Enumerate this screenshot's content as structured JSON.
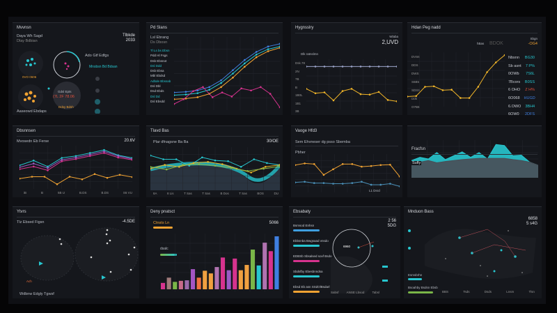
{
  "colors": {
    "teal": "#27c6cf",
    "blue": "#3f7fe0",
    "orange": "#f0a232",
    "yellow": "#e7b728",
    "pink": "#d6338e",
    "purple": "#9a5bc4",
    "gray": "#4a4d55",
    "green": "#7ab648",
    "red": "#e0503c"
  },
  "p1": {
    "title": "Mvvnsn",
    "sub1": "Daya Wh Sagd",
    "sub2": "Dlay Bdbian",
    "right1": "Tlbkde",
    "right2": "2033",
    "list_title": "Ado Gtf Edfgs",
    "list_hl": "Mnsbsn Bd Bdsan",
    "gauge_label": "Gdsl Epts",
    "gauge_value": "(7L 2F 78.06",
    "gauge_value2": "Ddsy Bdsh",
    "bubble_label": "0VO 0606",
    "footer": "Aaseowd Ebdaps"
  },
  "p2": {
    "title": "Pd Slans",
    "sub": "Lsl Ebrang",
    "sub2": "Ds Dbosn",
    "labels": [
      "Tl Ls bs Dbsn",
      "Pdd Hl Fsgs",
      "Dsb Ebsnot",
      "Dsl Ddd",
      "Dsb Ebsa",
      "Mbl Ebdsd",
      "Adbde Bbssab",
      "Dsl Dbl",
      "Dsd Ebds",
      "Dsl Dd",
      "Dsl Ebsdd"
    ]
  },
  "p3": {
    "title": "Hygnsslry",
    "right1": "Wlaba",
    "right2": "2,UVD",
    "axis_label": "Dlk ratnslmn",
    "yticks": [
      "Dsk.78",
      "2N",
      "7B",
      "B",
      "1B0L",
      "1B1",
      "3B"
    ]
  },
  "p4": {
    "title": "Hdan Peg nadd",
    "right1": "Sbgn",
    "right2": "-OG4",
    "head": "hBas",
    "head2": "BDOK",
    "yticks": [
      "DVS6",
      "DDS",
      "DWS",
      "S6B5",
      "SDSS",
      "Dds",
      "O7B6"
    ],
    "stats": [
      {
        "k": "Nbsnn",
        "v": "BG30",
        "c": "#27c6cf"
      },
      {
        "k": "Sb asnt",
        "v": "7 P%",
        "c": "#27c6cf"
      },
      {
        "k": "0OWb",
        "v": "7S6L",
        "c": "#27c6cf"
      },
      {
        "k": "7Bcors",
        "v": "B0SS",
        "c": "#27c6cf"
      },
      {
        "k": "6 OHO",
        "v": "Z H%",
        "c": "#e0503c"
      },
      {
        "k": "6O068",
        "v": "HUGD",
        "c": "#3f7fe0"
      },
      {
        "k": "6.OWO",
        "v": "3BH4",
        "c": "#27c6cf"
      },
      {
        "k": "6OW0",
        "v": "2DFS",
        "c": "#3f7fe0"
      }
    ]
  },
  "p5": {
    "title": "Dbsnnsen",
    "sub": "Mvosedn Eb Ferse",
    "right": "20.6V",
    "xticks": [
      "iB",
      "B",
      "5B U",
      "B.DS",
      "B.DS",
      "S6 VU"
    ]
  },
  "p6": {
    "title": "Tlavd Bas",
    "sub": "Plar dfnagsne Ba Ba",
    "right": "30/OE",
    "xticks": [
      "8A",
      "8 Lis",
      "T Sas",
      "T Sas",
      "B Dos",
      "T Sas",
      "BOS",
      "DU"
    ]
  },
  "p7": {
    "title": "Vaoge Hfd3",
    "sub": "Sem Ehvneser dg psso Sbemba",
    "sub2": "Pbher",
    "note": "L1 Dsrd"
  },
  "p8": {
    "title": "Fracfsn",
    "sub": "Sufly"
  },
  "p9": {
    "title": "Ytvrs",
    "sub": "Tlz Ebsed Figsn",
    "right": "-4.5DE",
    "footer": "Wdbnw Edgly Tgwsf",
    "legend": "Ach"
  },
  "p10": {
    "title": "Deny pnatsct",
    "right": "5066",
    "legend1": "Ctnsts Ln",
    "legend2": "dsalc"
  },
  "p11": {
    "title": "Ebsabaty",
    "right1": "2 56",
    "right2": "5DG",
    "circle_label": "6960",
    "items": [
      {
        "label": "Bsmsod Enhsn",
        "color": "#3f9fe0"
      },
      {
        "label": "Ebbsnba Bwgsaad vnsdo",
        "color": "#27c6cf"
      },
      {
        "label": "EDBSb Sbsalsed sovf Bsdo",
        "color": "#d6338e"
      },
      {
        "label": "Sbdsfby Ebesbnndsa",
        "color": "#27c6cf"
      },
      {
        "label": "Ebsd Eb asn SSdOlBsdarl",
        "color": "#f0a232"
      }
    ],
    "xticks": [
      "Sabsf",
      "ANSE Lbsod",
      "Tabsl"
    ]
  },
  "p12": {
    "title": "Mnduon Bass",
    "right1": "6858",
    "right2": "5 s4G",
    "legend1": "Esmsbrhn",
    "legend2": "Bsoahby Bsdsn Ebsb",
    "xticks": [
      "BBS",
      "Tsds",
      "Dsds",
      "Lnsm",
      "Tlsn"
    ]
  },
  "chart_data": [
    {
      "id": "c2",
      "type": "line",
      "ymax": 100,
      "series": [
        {
          "color": "#3f7fe0",
          "values": [
            22,
            23,
            25,
            30,
            40,
            55,
            70,
            82,
            90,
            94
          ]
        },
        {
          "color": "#27c6cf",
          "values": [
            18,
            19,
            21,
            26,
            36,
            50,
            65,
            78,
            86,
            90
          ]
        },
        {
          "color": "#f0a232",
          "values": [
            12,
            13,
            15,
            20,
            30,
            44,
            60,
            74,
            83,
            88
          ]
        },
        {
          "color": "#d6338e",
          "values": [
            5,
            12,
            24,
            30,
            15,
            22,
            16,
            28,
            25,
            30,
            20,
            0
          ]
        }
      ]
    },
    {
      "id": "c3",
      "type": "line",
      "ymax": 100,
      "series": [
        {
          "color": "#9aa3c8",
          "values": [
            90,
            90,
            90,
            90,
            90,
            90,
            90,
            90,
            90,
            90,
            90
          ]
        },
        {
          "color": "#f0b428",
          "values": [
            40,
            30,
            32,
            14,
            35,
            40,
            28,
            27,
            33,
            15,
            12
          ]
        }
      ]
    },
    {
      "id": "c4",
      "type": "line",
      "ymax": 100,
      "series": [
        {
          "color": "#f0b428",
          "values": [
            15,
            16,
            35,
            36,
            28,
            29,
            12,
            12,
            35,
            65,
            85,
            100
          ]
        }
      ]
    },
    {
      "id": "c5",
      "type": "line",
      "ymax": 100,
      "series": [
        {
          "color": "#27c6cf",
          "values": [
            55,
            68,
            52,
            75,
            80,
            88,
            96,
            82,
            75
          ]
        },
        {
          "color": "#9a5bc4",
          "values": [
            50,
            60,
            48,
            70,
            76,
            84,
            92,
            80,
            72
          ]
        },
        {
          "color": "#d6338e",
          "values": [
            45,
            52,
            42,
            66,
            72,
            80,
            88,
            76,
            70
          ]
        },
        {
          "color": "#f0a232",
          "values": [
            20,
            25,
            25,
            5,
            25,
            18,
            32,
            22,
            30,
            24
          ]
        }
      ]
    },
    {
      "id": "c6",
      "type": "line",
      "ymax": 100,
      "series": [
        {
          "color": "#27c6cf",
          "values": [
            85,
            75,
            75,
            58,
            80,
            72,
            70,
            55,
            75,
            65,
            60
          ]
        },
        {
          "color": "#e7b728",
          "values": [
            50,
            60,
            55,
            65,
            68,
            62,
            50,
            40,
            55,
            60
          ]
        },
        {
          "color": "#8ab848",
          "values": [
            55,
            48,
            60,
            62,
            58,
            52,
            44,
            50,
            56
          ]
        }
      ]
    },
    {
      "id": "c7",
      "type": "line",
      "ymax": 100,
      "series": [
        {
          "color": "#f0a232",
          "values": [
            75,
            80,
            78,
            45,
            62,
            78,
            78,
            70,
            72,
            75,
            76,
            40
          ]
        },
        {
          "color": "#4a90b8",
          "values": [
            22,
            24,
            20,
            20,
            18,
            18,
            20,
            24,
            15,
            15,
            18,
            10
          ]
        }
      ]
    },
    {
      "id": "c8",
      "type": "area",
      "ymax": 100,
      "series": [
        {
          "color": "#27c6cf",
          "values": [
            45,
            55,
            50,
            70,
            48,
            60,
            72,
            55,
            70,
            50,
            95,
            92,
            60,
            62,
            40,
            30
          ]
        },
        {
          "color": "#4a4d55",
          "values": [
            35,
            40,
            45,
            38,
            42,
            45,
            48,
            50,
            52,
            52,
            52,
            52,
            48,
            45,
            40,
            30
          ]
        }
      ]
    },
    {
      "id": "c10",
      "type": "bar",
      "ymax": 100,
      "values": [
        12,
        22,
        14,
        16,
        17,
        38,
        22,
        35,
        30,
        42,
        60,
        36,
        58,
        36,
        46,
        75,
        45,
        88,
        72,
        100
      ],
      "colors": [
        "#d6338e",
        "#a07a7a",
        "#7ab648",
        "#c86a8a",
        "#9a6aaa",
        "#a455c4",
        "#f07040",
        "#f0a040",
        "#f0a040",
        "#b073b0",
        "#d6338e",
        "#9a5bc4",
        "#d6338e",
        "#f0a040",
        "#f0a040",
        "#7ab648",
        "#27c6cf",
        "#b073b0",
        "#d6338e",
        "#3f7fe0"
      ]
    }
  ]
}
